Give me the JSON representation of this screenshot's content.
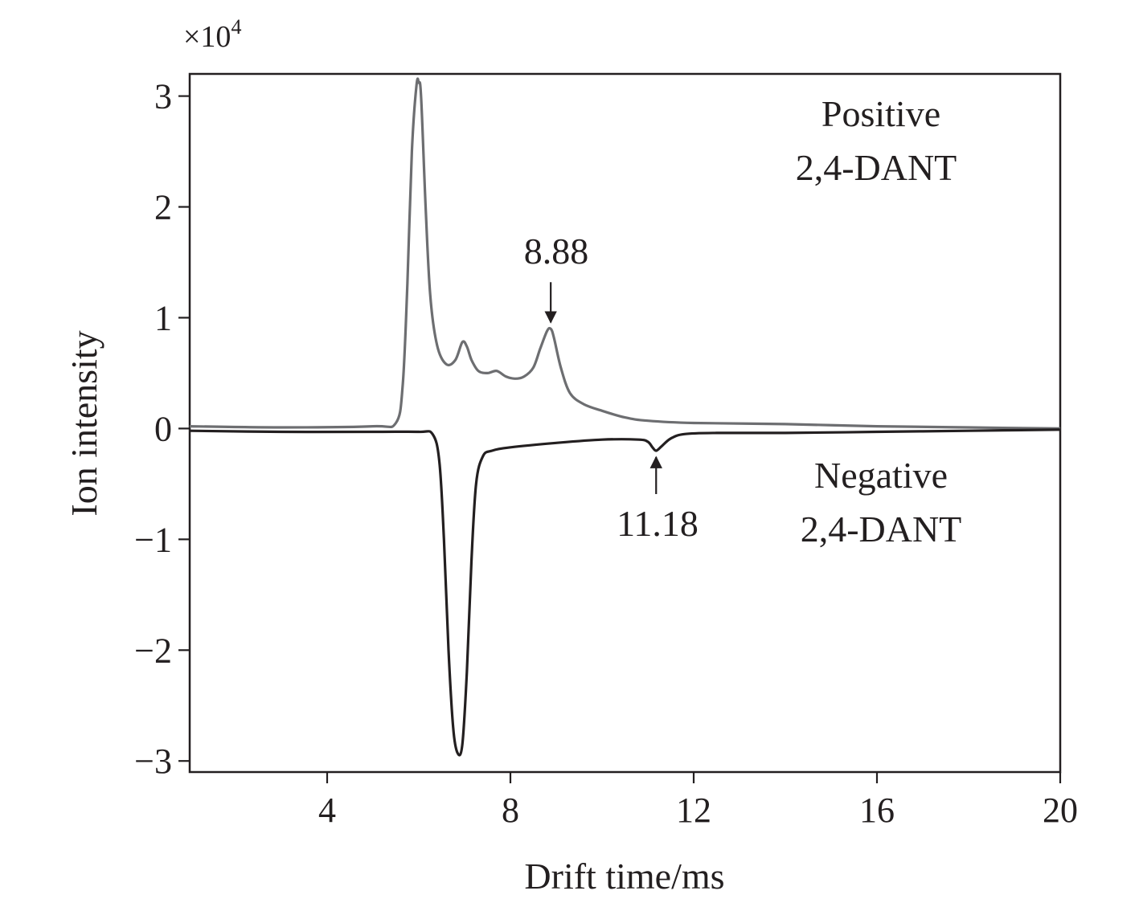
{
  "chart_data": {
    "type": "line",
    "xlabel": "Drift time/ms",
    "ylabel": "Ion intensity",
    "y_multiplier": "×10",
    "y_multiplier_exp": "4",
    "xlim": [
      1,
      20
    ],
    "ylim": [
      -3.1,
      3.2
    ],
    "x_ticks": [
      4,
      8,
      12,
      16,
      20
    ],
    "x_tick_labels": [
      "4",
      "8",
      "12",
      "16",
      "20"
    ],
    "y_ticks": [
      -3,
      -2,
      -1,
      0,
      1,
      2,
      3
    ],
    "y_tick_labels": [
      "−3",
      "−2",
      "−1",
      "0",
      "1",
      "2",
      "3"
    ],
    "grid": false,
    "legend": "none",
    "series": [
      {
        "key": "positive",
        "color": "#6d6e71",
        "x": [
          1.0,
          3.0,
          5.0,
          5.5,
          5.65,
          5.75,
          5.85,
          5.95,
          6.0,
          6.05,
          6.15,
          6.25,
          6.4,
          6.6,
          6.8,
          6.95,
          7.05,
          7.15,
          7.3,
          7.5,
          7.7,
          7.9,
          8.1,
          8.3,
          8.5,
          8.65,
          8.8,
          8.88,
          8.95,
          9.1,
          9.3,
          9.6,
          10.0,
          10.5,
          11.0,
          12.0,
          14.0,
          16.0,
          18.0,
          20.0
        ],
        "y": [
          0.02,
          0.01,
          0.02,
          0.05,
          0.4,
          1.3,
          2.5,
          3.1,
          3.12,
          3.0,
          2.0,
          1.2,
          0.75,
          0.58,
          0.62,
          0.78,
          0.74,
          0.62,
          0.52,
          0.5,
          0.52,
          0.47,
          0.45,
          0.47,
          0.55,
          0.72,
          0.88,
          0.9,
          0.82,
          0.55,
          0.32,
          0.22,
          0.16,
          0.1,
          0.07,
          0.05,
          0.04,
          0.02,
          0.01,
          0.0
        ]
      },
      {
        "key": "negative",
        "color": "#231f20",
        "x": [
          1.0,
          3.0,
          5.0,
          6.0,
          6.3,
          6.45,
          6.55,
          6.65,
          6.75,
          6.85,
          6.95,
          7.05,
          7.15,
          7.25,
          7.4,
          7.6,
          8.0,
          9.0,
          10.0,
          10.8,
          11.0,
          11.1,
          11.18,
          11.3,
          11.5,
          11.8,
          12.5,
          14.0,
          16.0,
          18.0,
          20.0
        ],
        "y": [
          -0.02,
          -0.03,
          -0.03,
          -0.03,
          -0.05,
          -0.3,
          -1.0,
          -2.0,
          -2.7,
          -2.93,
          -2.85,
          -2.2,
          -1.2,
          -0.5,
          -0.25,
          -0.2,
          -0.17,
          -0.13,
          -0.1,
          -0.1,
          -0.12,
          -0.17,
          -0.2,
          -0.16,
          -0.09,
          -0.05,
          -0.04,
          -0.04,
          -0.03,
          -0.02,
          -0.01
        ]
      }
    ],
    "annotations": {
      "positive_line1": "Positive",
      "positive_line2": "2,4-DANT",
      "negative_line1": "Negative",
      "negative_line2": "2,4-DANT",
      "peak_pos_label": "8.88",
      "peak_pos_x": 8.88,
      "peak_pos_y": 0.9,
      "peak_neg_label": "11.18",
      "peak_neg_x": 11.18,
      "peak_neg_y": -0.2
    }
  }
}
